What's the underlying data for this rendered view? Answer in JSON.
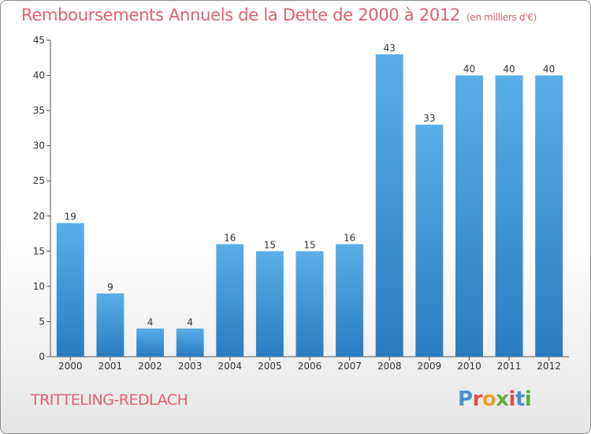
{
  "header": {
    "title": "Remboursements Annuels de la Dette de 2000 à 2012",
    "subtitle": "(en milliers d'€)"
  },
  "footer": {
    "commune": "TRITTELING-REDLACH",
    "logo": "Proxiti"
  },
  "colors": {
    "title": "#e06070",
    "bar_top": "#5aaee8",
    "bar_bottom": "#2a7cc0"
  },
  "chart_data": {
    "type": "bar",
    "categories": [
      "2000",
      "2001",
      "2002",
      "2003",
      "2004",
      "2005",
      "2006",
      "2007",
      "2008",
      "2009",
      "2010",
      "2011",
      "2012"
    ],
    "values": [
      19,
      9,
      4,
      4,
      16,
      15,
      15,
      16,
      43,
      33,
      40,
      40,
      40
    ],
    "ylim": [
      0,
      45
    ],
    "yticks": [
      0,
      5,
      10,
      15,
      20,
      25,
      30,
      35,
      40,
      45
    ],
    "grid": false,
    "data_labels": true
  }
}
